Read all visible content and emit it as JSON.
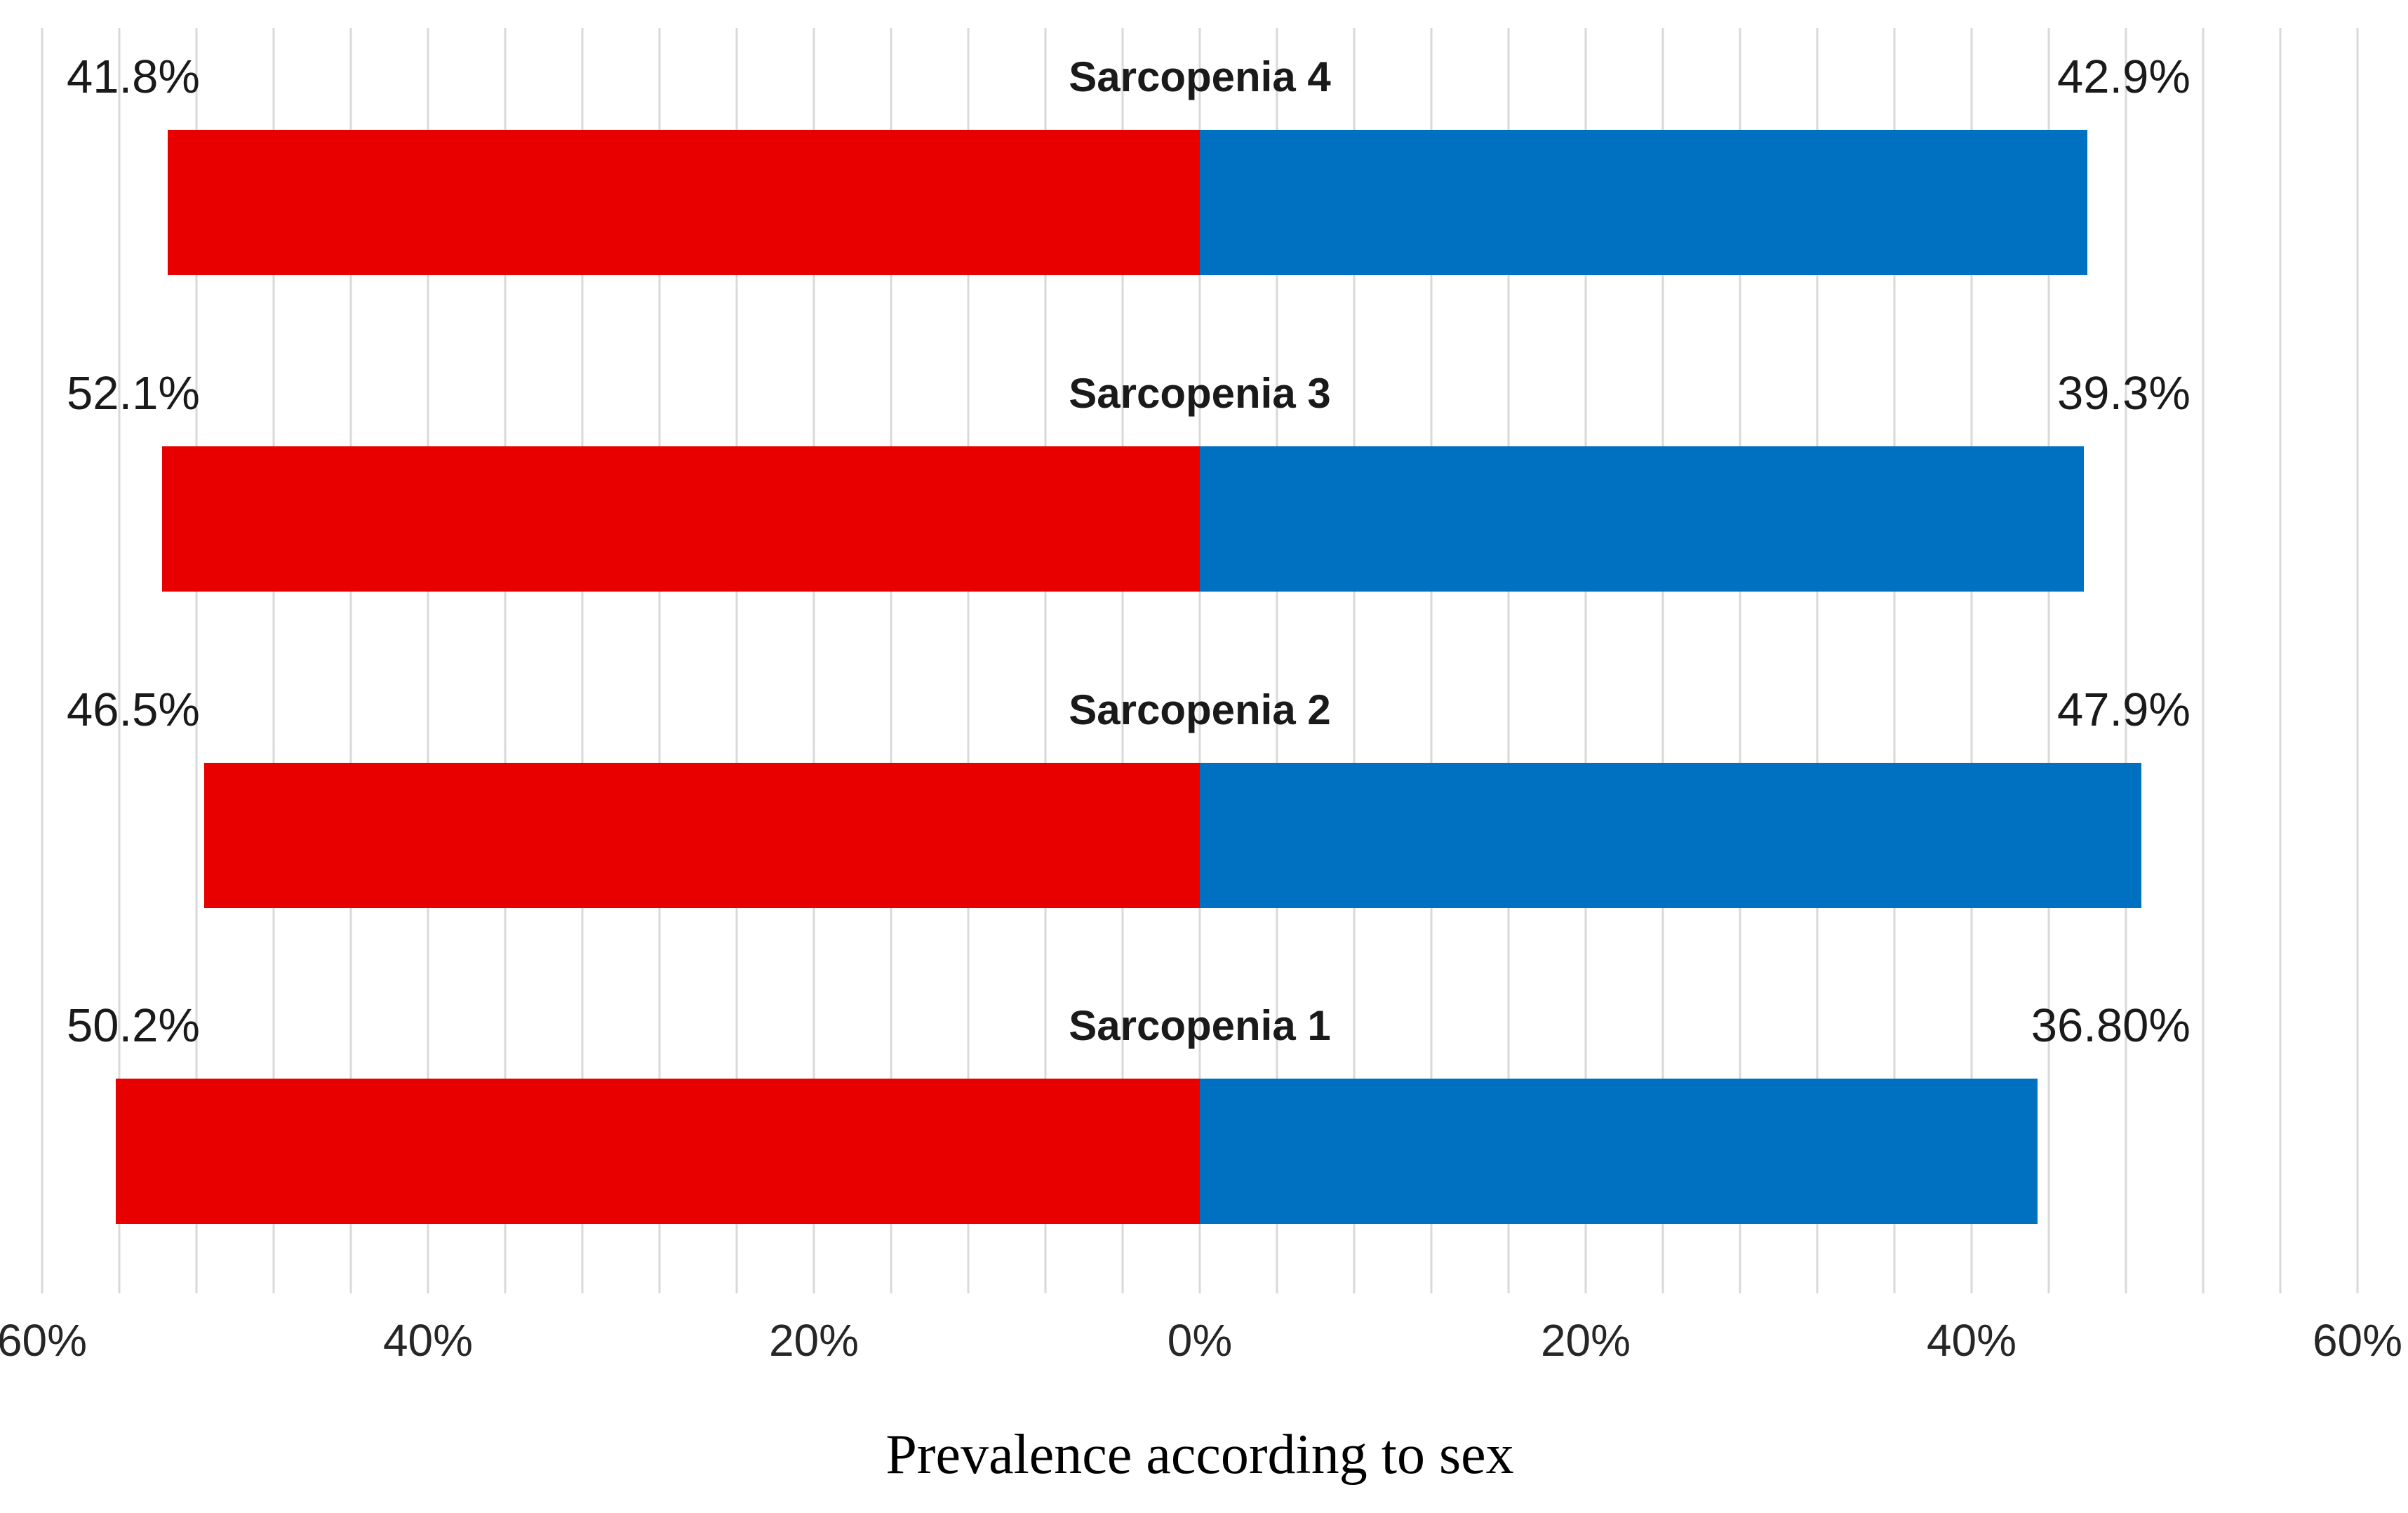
{
  "chart_data": {
    "type": "bar",
    "orientation": "horizontal-diverging-tornado",
    "title": "Prevalence according to sex",
    "categories": [
      "Sarcopenia 4",
      "Sarcopenia 3",
      "Sarcopenia 2",
      "Sarcopenia 1"
    ],
    "series": [
      {
        "name": "left-red",
        "side": "left",
        "color": "#e80000",
        "labels": [
          "41.8%",
          "52.1%",
          "46.5%",
          "50.2%"
        ],
        "values": [
          41.8,
          52.1,
          46.5,
          50.2
        ],
        "drawn_extent_axis_units": [
          53.5,
          53.8,
          51.6,
          56.2
        ]
      },
      {
        "name": "right-blue",
        "side": "right",
        "color": "#0070c0",
        "labels": [
          "42.9%",
          "39.3%",
          "47.9%",
          "36.80%"
        ],
        "values": [
          42.9,
          39.3,
          47.9,
          36.8
        ],
        "drawn_extent_axis_units": [
          46.0,
          45.8,
          48.8,
          43.4
        ]
      }
    ],
    "x_axis": {
      "range": [
        -60,
        60
      ],
      "major_tick_values": [
        -60,
        -40,
        -20,
        0,
        20,
        40,
        60
      ],
      "major_tick_labels": [
        "60%",
        "40%",
        "20%",
        "0%",
        "20%",
        "40%",
        "60%"
      ],
      "minor_gridline_step": 4,
      "gridlines": true
    },
    "legend_visible": false
  },
  "colors": {
    "left_bar": "#e80000",
    "right_bar": "#0070c0",
    "gridline": "#d9d9d9",
    "label_text": "#1a1a1a",
    "tick_text": "#262626",
    "background": "#ffffff"
  }
}
